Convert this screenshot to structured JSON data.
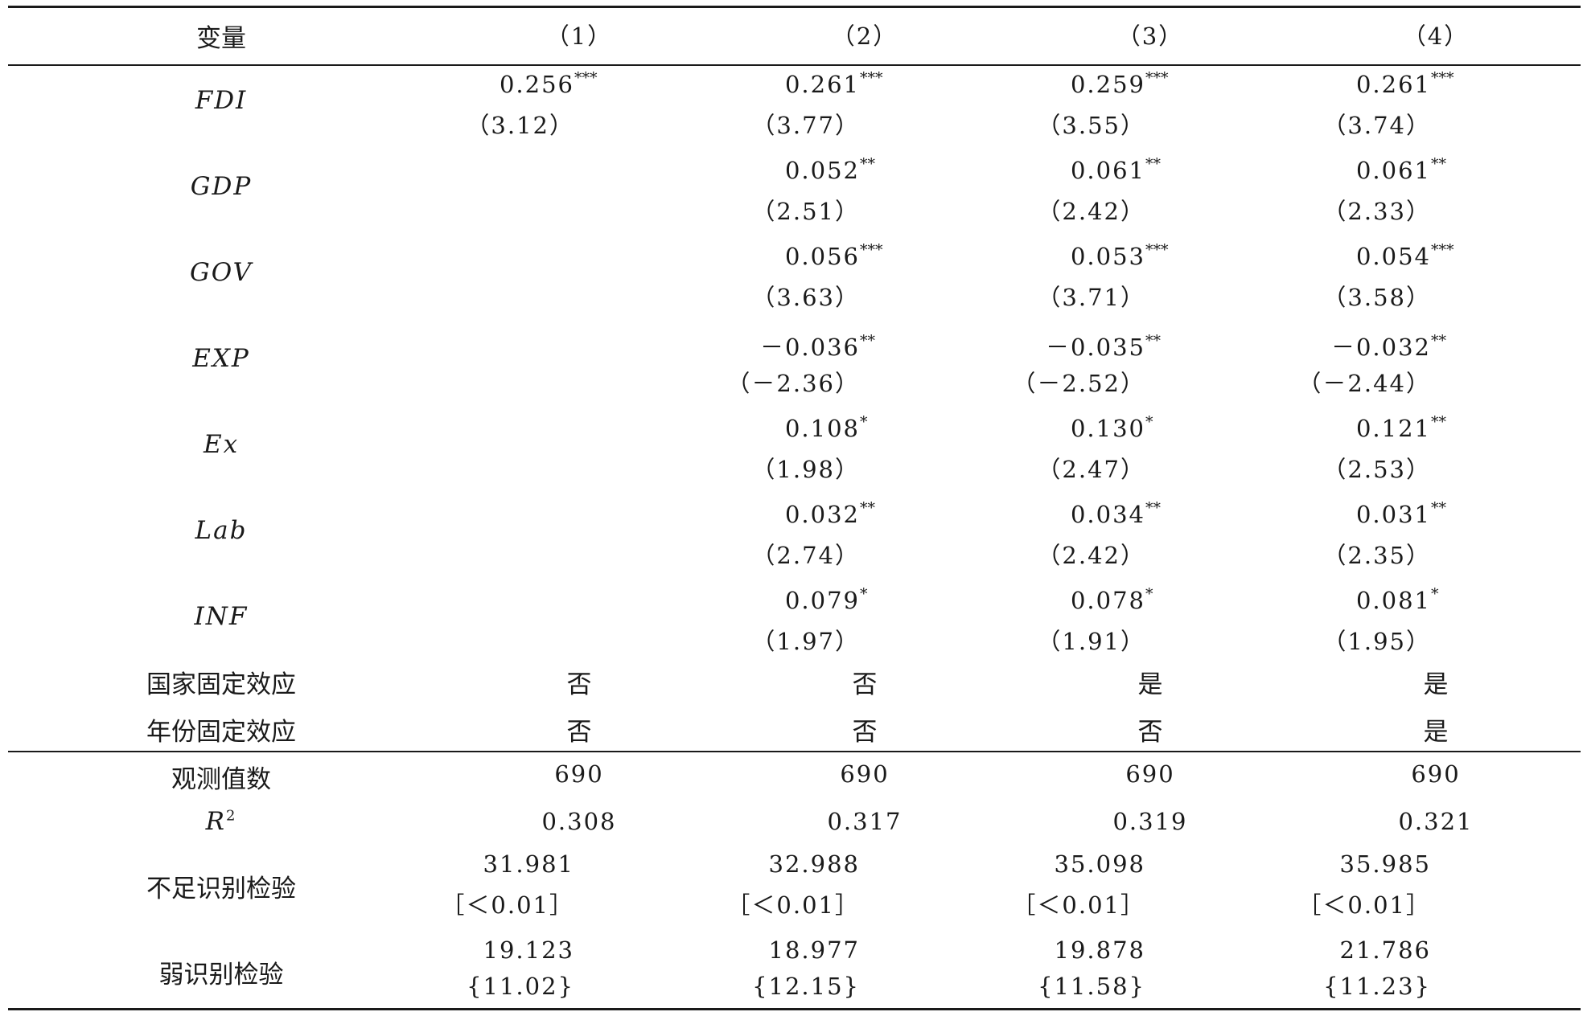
{
  "header": {
    "var": "变量",
    "cols": [
      "（1）",
      "（2）",
      "（3）",
      "（4）"
    ]
  },
  "rows": [
    {
      "name": "FDI",
      "coef": [
        {
          "v": "0.256",
          "s": "***"
        },
        {
          "v": "0.261",
          "s": "***"
        },
        {
          "v": "0.259",
          "s": "***"
        },
        {
          "v": "0.261",
          "s": "***"
        }
      ],
      "t": [
        "（3.12）",
        "（3.77）",
        "（3.55）",
        "（3.74）"
      ]
    },
    {
      "name": "GDP",
      "coef": [
        null,
        {
          "v": "0.052",
          "s": "**"
        },
        {
          "v": "0.061",
          "s": "**"
        },
        {
          "v": "0.061",
          "s": "**"
        }
      ],
      "t": [
        null,
        "（2.51）",
        "（2.42）",
        "（2.33）"
      ]
    },
    {
      "name": "GOV",
      "coef": [
        null,
        {
          "v": "0.056",
          "s": "***"
        },
        {
          "v": "0.053",
          "s": "***"
        },
        {
          "v": "0.054",
          "s": "***"
        }
      ],
      "t": [
        null,
        "（3.63）",
        "（3.71）",
        "（3.58）"
      ]
    },
    {
      "name": "EXP",
      "coef": [
        null,
        {
          "v": "－0.036",
          "s": "**"
        },
        {
          "v": "－0.035",
          "s": "**"
        },
        {
          "v": "－0.032",
          "s": "**"
        }
      ],
      "t": [
        null,
        "（－2.36）",
        "（－2.52）",
        "（－2.44）"
      ]
    },
    {
      "name": "Ex",
      "coef": [
        null,
        {
          "v": "0.108",
          "s": "*"
        },
        {
          "v": "0.130",
          "s": "*"
        },
        {
          "v": "0.121",
          "s": "**"
        }
      ],
      "t": [
        null,
        "（1.98）",
        "（2.47）",
        "（2.53）"
      ]
    },
    {
      "name": "Lab",
      "coef": [
        null,
        {
          "v": "0.032",
          "s": "**"
        },
        {
          "v": "0.034",
          "s": "**"
        },
        {
          "v": "0.031",
          "s": "**"
        }
      ],
      "t": [
        null,
        "（2.74）",
        "（2.42）",
        "（2.35）"
      ]
    },
    {
      "name": "INF",
      "coef": [
        null,
        {
          "v": "0.079",
          "s": "*"
        },
        {
          "v": "0.078",
          "s": "*"
        },
        {
          "v": "0.081",
          "s": "*"
        }
      ],
      "t": [
        null,
        "（1.97）",
        "（1.91）",
        "（1.95）"
      ]
    }
  ],
  "fixed_effects": [
    {
      "name": "国家固定效应",
      "vals": [
        "否",
        "否",
        "是",
        "是"
      ]
    },
    {
      "name": "年份固定效应",
      "vals": [
        "否",
        "否",
        "否",
        "是"
      ]
    }
  ],
  "stats": {
    "obs": {
      "name": "观测值数",
      "vals": [
        "690",
        "690",
        "690",
        "690"
      ]
    },
    "r2": {
      "name": "R",
      "sup": "2",
      "vals": [
        "0.308",
        "0.317",
        "0.319",
        "0.321"
      ]
    },
    "underid": {
      "name": "不足识别检验",
      "vals": [
        "31.981",
        "32.988",
        "35.098",
        "35.985"
      ],
      "p": [
        "［＜0.01］",
        "［＜0.01］",
        "［＜0.01］",
        "［＜0.01］"
      ]
    },
    "weakid": {
      "name": "弱识别检验",
      "vals": [
        "19.123",
        "18.977",
        "19.878",
        "21.786"
      ],
      "crit": [
        "{11.02}",
        "{12.15}",
        "{11.58}",
        "{11.23}"
      ]
    }
  }
}
